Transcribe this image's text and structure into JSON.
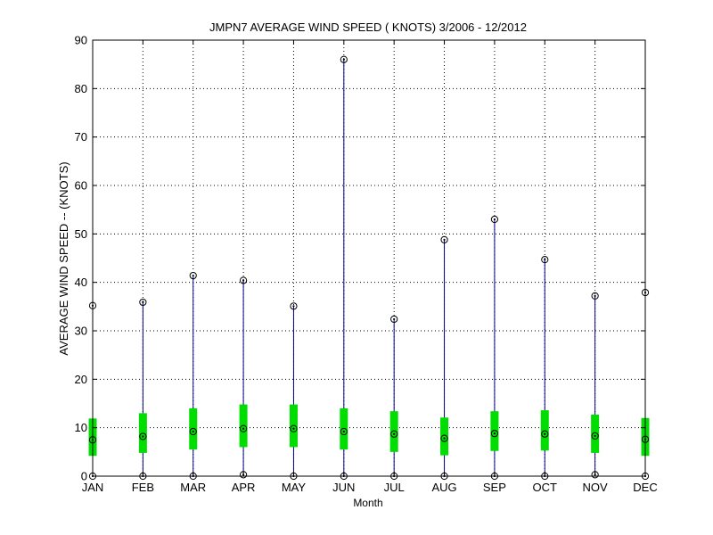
{
  "chart_data": {
    "type": "box",
    "title": "JMPN7  AVERAGE WIND SPEED ( KNOTS) 3/2006 - 12/2012",
    "xlabel": "Month",
    "ylabel": "AVERAGE WIND SPEED -- (KNOTS)",
    "ylim": [
      0,
      90
    ],
    "yticks": [
      0,
      10,
      20,
      30,
      40,
      50,
      60,
      70,
      80,
      90
    ],
    "grid": true,
    "categories": [
      "JAN",
      "FEB",
      "MAR",
      "APR",
      "MAY",
      "JUN",
      "JUL",
      "AUG",
      "SEP",
      "OCT",
      "NOV",
      "DEC"
    ],
    "series": [
      {
        "min": [
          0,
          0,
          0,
          0.3,
          0,
          0,
          0,
          0,
          0,
          0,
          0.3,
          0
        ],
        "q1": [
          4.2,
          4.8,
          5.5,
          6.0,
          6.0,
          5.5,
          5.0,
          4.3,
          5.2,
          5.3,
          4.8,
          4.2
        ],
        "mean": [
          7.5,
          8.2,
          9.2,
          9.8,
          9.8,
          9.2,
          8.7,
          7.8,
          8.8,
          8.7,
          8.3,
          7.6
        ],
        "q3": [
          11.9,
          13.0,
          14.0,
          14.8,
          14.8,
          14.0,
          13.4,
          12.1,
          13.4,
          13.6,
          12.7,
          12.0
        ],
        "max": [
          35.2,
          35.9,
          41.4,
          40.4,
          35.1,
          86.0,
          32.4,
          48.8,
          53.0,
          44.7,
          37.2,
          37.9
        ]
      }
    ],
    "colors": {
      "whisker": "#00008b",
      "box": "#00dd00",
      "marker": "#000000",
      "grid": "#000000"
    }
  }
}
